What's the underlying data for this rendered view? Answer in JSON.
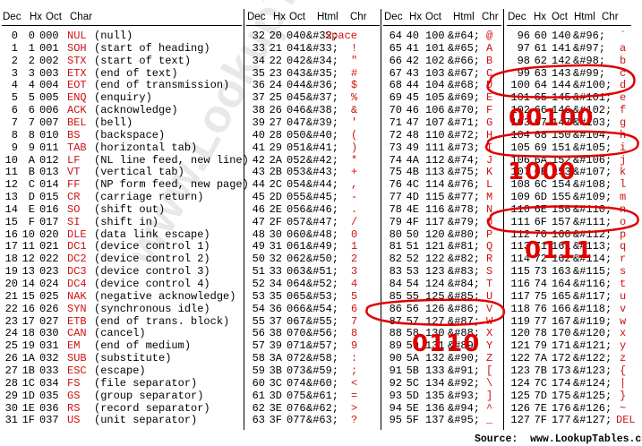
{
  "watermark": "www.LookupTables.com",
  "source": "Source:  www.LookupTables.com",
  "colors": {
    "red": "#d01010",
    "ink": "#000000",
    "annotation": "#e00000"
  },
  "groups": [
    {
      "columns": [
        "Dec",
        "Hx",
        "Oct",
        "Char"
      ],
      "rows": [
        [
          "0",
          "0",
          "000",
          "NUL",
          "(null)"
        ],
        [
          "1",
          "1",
          "001",
          "SOH",
          "(start of heading)"
        ],
        [
          "2",
          "2",
          "002",
          "STX",
          "(start of text)"
        ],
        [
          "3",
          "3",
          "003",
          "ETX",
          "(end of text)"
        ],
        [
          "4",
          "4",
          "004",
          "EOT",
          "(end of transmission)"
        ],
        [
          "5",
          "5",
          "005",
          "ENQ",
          "(enquiry)"
        ],
        [
          "6",
          "6",
          "006",
          "ACK",
          "(acknowledge)"
        ],
        [
          "7",
          "7",
          "007",
          "BEL",
          "(bell)"
        ],
        [
          "8",
          "8",
          "010",
          "BS",
          "(backspace)"
        ],
        [
          "9",
          "9",
          "011",
          "TAB",
          "(horizontal tab)"
        ],
        [
          "10",
          "A",
          "012",
          "LF",
          "(NL line feed, new line)"
        ],
        [
          "11",
          "B",
          "013",
          "VT",
          "(vertical tab)"
        ],
        [
          "12",
          "C",
          "014",
          "FF",
          "(NP form feed, new page)"
        ],
        [
          "13",
          "D",
          "015",
          "CR",
          "(carriage return)"
        ],
        [
          "14",
          "E",
          "016",
          "SO",
          "(shift out)"
        ],
        [
          "15",
          "F",
          "017",
          "SI",
          "(shift in)"
        ],
        [
          "16",
          "10",
          "020",
          "DLE",
          "(data link escape)"
        ],
        [
          "17",
          "11",
          "021",
          "DC1",
          "(device control 1)"
        ],
        [
          "18",
          "12",
          "022",
          "DC2",
          "(device control 2)"
        ],
        [
          "19",
          "13",
          "023",
          "DC3",
          "(device control 3)"
        ],
        [
          "20",
          "14",
          "024",
          "DC4",
          "(device control 4)"
        ],
        [
          "21",
          "15",
          "025",
          "NAK",
          "(negative acknowledge)"
        ],
        [
          "22",
          "16",
          "026",
          "SYN",
          "(synchronous idle)"
        ],
        [
          "23",
          "17",
          "027",
          "ETB",
          "(end of trans. block)"
        ],
        [
          "24",
          "18",
          "030",
          "CAN",
          "(cancel)"
        ],
        [
          "25",
          "19",
          "031",
          "EM",
          "(end of medium)"
        ],
        [
          "26",
          "1A",
          "032",
          "SUB",
          "(substitute)"
        ],
        [
          "27",
          "1B",
          "033",
          "ESC",
          "(escape)"
        ],
        [
          "28",
          "1C",
          "034",
          "FS",
          "(file separator)"
        ],
        [
          "29",
          "1D",
          "035",
          "GS",
          "(group separator)"
        ],
        [
          "30",
          "1E",
          "036",
          "RS",
          "(record separator)"
        ],
        [
          "31",
          "1F",
          "037",
          "US",
          "(unit separator)"
        ]
      ]
    },
    {
      "columns": [
        "Dec",
        "Hx",
        "Oct",
        "Html",
        "Chr"
      ],
      "rows": [
        [
          "32",
          "20",
          "040",
          "&#32;",
          "Space"
        ],
        [
          "33",
          "21",
          "041",
          "&#33;",
          "!"
        ],
        [
          "34",
          "22",
          "042",
          "&#34;",
          "\""
        ],
        [
          "35",
          "23",
          "043",
          "&#35;",
          "#"
        ],
        [
          "36",
          "24",
          "044",
          "&#36;",
          "$"
        ],
        [
          "37",
          "25",
          "045",
          "&#37;",
          "%"
        ],
        [
          "38",
          "26",
          "046",
          "&#38;",
          "&"
        ],
        [
          "39",
          "27",
          "047",
          "&#39;",
          "'"
        ],
        [
          "40",
          "28",
          "050",
          "&#40;",
          "("
        ],
        [
          "41",
          "29",
          "051",
          "&#41;",
          ")"
        ],
        [
          "42",
          "2A",
          "052",
          "&#42;",
          "*"
        ],
        [
          "43",
          "2B",
          "053",
          "&#43;",
          "+"
        ],
        [
          "44",
          "2C",
          "054",
          "&#44;",
          ","
        ],
        [
          "45",
          "2D",
          "055",
          "&#45;",
          "-"
        ],
        [
          "46",
          "2E",
          "056",
          "&#46;",
          "."
        ],
        [
          "47",
          "2F",
          "057",
          "&#47;",
          "/"
        ],
        [
          "48",
          "30",
          "060",
          "&#48;",
          "0"
        ],
        [
          "49",
          "31",
          "061",
          "&#49;",
          "1"
        ],
        [
          "50",
          "32",
          "062",
          "&#50;",
          "2"
        ],
        [
          "51",
          "33",
          "063",
          "&#51;",
          "3"
        ],
        [
          "52",
          "34",
          "064",
          "&#52;",
          "4"
        ],
        [
          "53",
          "35",
          "065",
          "&#53;",
          "5"
        ],
        [
          "54",
          "36",
          "066",
          "&#54;",
          "6"
        ],
        [
          "55",
          "37",
          "067",
          "&#55;",
          "7"
        ],
        [
          "56",
          "38",
          "070",
          "&#56;",
          "8"
        ],
        [
          "57",
          "39",
          "071",
          "&#57;",
          "9"
        ],
        [
          "58",
          "3A",
          "072",
          "&#58;",
          ":"
        ],
        [
          "59",
          "3B",
          "073",
          "&#59;",
          ";"
        ],
        [
          "60",
          "3C",
          "074",
          "&#60;",
          "<"
        ],
        [
          "61",
          "3D",
          "075",
          "&#61;",
          "="
        ],
        [
          "62",
          "3E",
          "076",
          "&#62;",
          ">"
        ],
        [
          "63",
          "3F",
          "077",
          "&#63;",
          "?"
        ]
      ]
    },
    {
      "columns": [
        "Dec",
        "Hx",
        "Oct",
        "Html",
        "Chr"
      ],
      "rows": [
        [
          "64",
          "40",
          "100",
          "&#64;",
          "@"
        ],
        [
          "65",
          "41",
          "101",
          "&#65;",
          "A"
        ],
        [
          "66",
          "42",
          "102",
          "&#66;",
          "B"
        ],
        [
          "67",
          "43",
          "103",
          "&#67;",
          "C"
        ],
        [
          "68",
          "44",
          "104",
          "&#68;",
          "D"
        ],
        [
          "69",
          "45",
          "105",
          "&#69;",
          "E"
        ],
        [
          "70",
          "46",
          "106",
          "&#70;",
          "F"
        ],
        [
          "71",
          "47",
          "107",
          "&#71;",
          "G"
        ],
        [
          "72",
          "48",
          "110",
          "&#72;",
          "H"
        ],
        [
          "73",
          "49",
          "111",
          "&#73;",
          "I"
        ],
        [
          "74",
          "4A",
          "112",
          "&#74;",
          "J"
        ],
        [
          "75",
          "4B",
          "113",
          "&#75;",
          "K"
        ],
        [
          "76",
          "4C",
          "114",
          "&#76;",
          "L"
        ],
        [
          "77",
          "4D",
          "115",
          "&#77;",
          "M"
        ],
        [
          "78",
          "4E",
          "116",
          "&#78;",
          "N"
        ],
        [
          "79",
          "4F",
          "117",
          "&#79;",
          "O"
        ],
        [
          "80",
          "50",
          "120",
          "&#80;",
          "P"
        ],
        [
          "81",
          "51",
          "121",
          "&#81;",
          "Q"
        ],
        [
          "82",
          "52",
          "122",
          "&#82;",
          "R"
        ],
        [
          "83",
          "53",
          "123",
          "&#83;",
          "S"
        ],
        [
          "84",
          "54",
          "124",
          "&#84;",
          "T"
        ],
        [
          "85",
          "55",
          "125",
          "&#85;",
          "U"
        ],
        [
          "86",
          "56",
          "126",
          "&#86;",
          "V"
        ],
        [
          "87",
          "57",
          "127",
          "&#87;",
          "W"
        ],
        [
          "88",
          "58",
          "130",
          "&#88;",
          "X"
        ],
        [
          "89",
          "59",
          "131",
          "&#89;",
          "Y"
        ],
        [
          "90",
          "5A",
          "132",
          "&#90;",
          "Z"
        ],
        [
          "91",
          "5B",
          "133",
          "&#91;",
          "["
        ],
        [
          "92",
          "5C",
          "134",
          "&#92;",
          "\\"
        ],
        [
          "93",
          "5D",
          "135",
          "&#93;",
          "]"
        ],
        [
          "94",
          "5E",
          "136",
          "&#94;",
          "^"
        ],
        [
          "95",
          "5F",
          "137",
          "&#95;",
          "_"
        ]
      ]
    },
    {
      "columns": [
        "Dec",
        "Hx",
        "Oct",
        "Html",
        "Chr"
      ],
      "rows": [
        [
          "96",
          "60",
          "140",
          "&#96;",
          "`"
        ],
        [
          "97",
          "61",
          "141",
          "&#97;",
          "a"
        ],
        [
          "98",
          "62",
          "142",
          "&#98;",
          "b"
        ],
        [
          "99",
          "63",
          "143",
          "&#99;",
          "c"
        ],
        [
          "100",
          "64",
          "144",
          "&#100;",
          "d"
        ],
        [
          "101",
          "65",
          "145",
          "&#101;",
          "e"
        ],
        [
          "102",
          "66",
          "146",
          "&#102;",
          "f"
        ],
        [
          "103",
          "67",
          "147",
          "&#103;",
          "g"
        ],
        [
          "104",
          "68",
          "150",
          "&#104;",
          "h"
        ],
        [
          "105",
          "69",
          "151",
          "&#105;",
          "i"
        ],
        [
          "106",
          "6A",
          "152",
          "&#106;",
          "j"
        ],
        [
          "107",
          "6B",
          "153",
          "&#107;",
          "k"
        ],
        [
          "108",
          "6C",
          "154",
          "&#108;",
          "l"
        ],
        [
          "109",
          "6D",
          "155",
          "&#109;",
          "m"
        ],
        [
          "110",
          "6E",
          "156",
          "&#110;",
          "n"
        ],
        [
          "111",
          "6F",
          "157",
          "&#111;",
          "o"
        ],
        [
          "112",
          "70",
          "160",
          "&#112;",
          "p"
        ],
        [
          "113",
          "71",
          "161",
          "&#113;",
          "q"
        ],
        [
          "114",
          "72",
          "162",
          "&#114;",
          "r"
        ],
        [
          "115",
          "73",
          "163",
          "&#115;",
          "s"
        ],
        [
          "116",
          "74",
          "164",
          "&#116;",
          "t"
        ],
        [
          "117",
          "75",
          "165",
          "&#117;",
          "u"
        ],
        [
          "118",
          "76",
          "166",
          "&#118;",
          "v"
        ],
        [
          "119",
          "77",
          "167",
          "&#119;",
          "w"
        ],
        [
          "120",
          "78",
          "170",
          "&#120;",
          "x"
        ],
        [
          "121",
          "79",
          "171",
          "&#121;",
          "y"
        ],
        [
          "122",
          "7A",
          "172",
          "&#122;",
          "z"
        ],
        [
          "123",
          "7B",
          "173",
          "&#123;",
          "{"
        ],
        [
          "124",
          "7C",
          "174",
          "&#124;",
          "|"
        ],
        [
          "125",
          "7D",
          "175",
          "&#125;",
          "}"
        ],
        [
          "126",
          "7E",
          "176",
          "&#126;",
          "~"
        ],
        [
          "127",
          "7F",
          "177",
          "&#127;",
          "DEL"
        ]
      ]
    }
  ],
  "annotations": {
    "handwritten": [
      "00100",
      "1000",
      "0111",
      "0110"
    ],
    "circled_rows": [
      "&#100; d",
      "&#105; i",
      "&#111; o",
      "&#86; V"
    ]
  }
}
